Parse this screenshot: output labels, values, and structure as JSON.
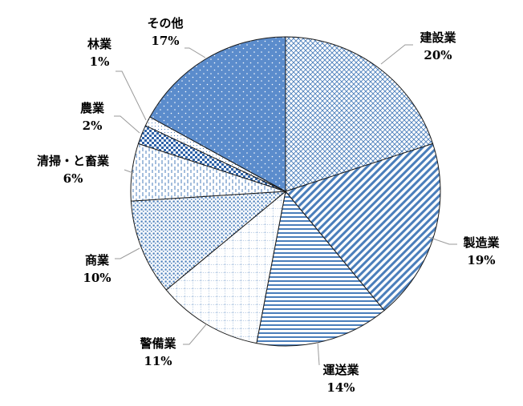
{
  "chart_data": {
    "type": "pie",
    "title": "",
    "start_angle_deg": 0,
    "direction": "clockwise",
    "slices": [
      {
        "label": "建設業",
        "value": 20,
        "value_label": "20%",
        "pattern": "crosshatch"
      },
      {
        "label": "製造業",
        "value": 19,
        "value_label": "19%",
        "pattern": "diagonal"
      },
      {
        "label": "運送業",
        "value": 14,
        "value_label": "14%",
        "pattern": "horizontal"
      },
      {
        "label": "警備業",
        "value": 11,
        "value_label": "11%",
        "pattern": "grid"
      },
      {
        "label": "商業",
        "value": 10,
        "value_label": "10%",
        "pattern": "dots-dense"
      },
      {
        "label": "清掃・と畜業",
        "value": 6,
        "value_label": "6%",
        "pattern": "vertical-dash"
      },
      {
        "label": "農業",
        "value": 2,
        "value_label": "2%",
        "pattern": "checker"
      },
      {
        "label": "林業",
        "value": 1,
        "value_label": "1%",
        "pattern": "dots-sparse"
      },
      {
        "label": "その他",
        "value": 17,
        "value_label": "17%",
        "pattern": "dots-on-blue"
      }
    ],
    "colors": {
      "accent": "#4a7ebb",
      "fill_solid": "#5b8ccc",
      "outline": "#1a1a1a"
    }
  }
}
